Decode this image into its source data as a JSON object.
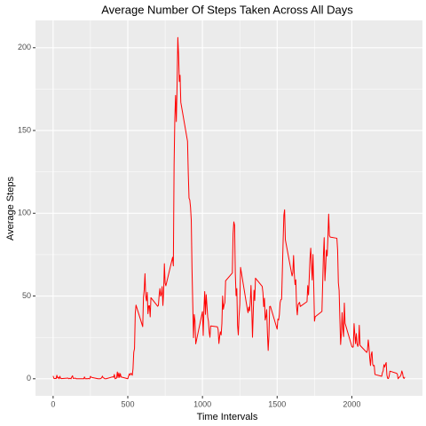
{
  "chart_data": {
    "type": "line",
    "title": "Average Number Of Steps Taken Across All Days",
    "x_label": "Time Intervals",
    "y_label": "Average Steps",
    "color": "#ff0000",
    "grid": true,
    "xlim": [
      -118,
      2473
    ],
    "ylim": [
      -10.3,
      216.5
    ],
    "xticks": [
      0,
      500,
      1000,
      1500,
      2000
    ],
    "yticks": [
      0,
      50,
      100,
      150,
      200
    ],
    "x": [
      0,
      5,
      10,
      15,
      20,
      25,
      30,
      35,
      40,
      45,
      50,
      55,
      100,
      105,
      110,
      115,
      120,
      125,
      130,
      135,
      140,
      145,
      150,
      155,
      200,
      205,
      210,
      215,
      220,
      225,
      230,
      235,
      240,
      245,
      250,
      255,
      300,
      305,
      310,
      315,
      320,
      325,
      330,
      335,
      340,
      345,
      350,
      355,
      400,
      405,
      410,
      415,
      420,
      425,
      430,
      435,
      440,
      445,
      450,
      455,
      500,
      505,
      510,
      515,
      520,
      525,
      530,
      535,
      540,
      545,
      550,
      555,
      600,
      605,
      610,
      615,
      620,
      625,
      630,
      635,
      640,
      645,
      650,
      655,
      700,
      705,
      710,
      715,
      720,
      725,
      730,
      735,
      740,
      745,
      750,
      755,
      800,
      805,
      810,
      815,
      820,
      825,
      830,
      835,
      840,
      845,
      850,
      855,
      900,
      905,
      910,
      915,
      920,
      925,
      930,
      935,
      940,
      945,
      950,
      955,
      1000,
      1005,
      1010,
      1015,
      1020,
      1025,
      1030,
      1035,
      1040,
      1045,
      1050,
      1055,
      1100,
      1105,
      1110,
      1115,
      1120,
      1125,
      1130,
      1135,
      1140,
      1145,
      1150,
      1155,
      1200,
      1205,
      1210,
      1215,
      1220,
      1225,
      1230,
      1235,
      1240,
      1245,
      1250,
      1255,
      1300,
      1305,
      1310,
      1315,
      1320,
      1325,
      1330,
      1335,
      1340,
      1345,
      1350,
      1355,
      1400,
      1405,
      1410,
      1415,
      1420,
      1425,
      1430,
      1435,
      1440,
      1445,
      1450,
      1455,
      1500,
      1505,
      1510,
      1515,
      1520,
      1525,
      1530,
      1535,
      1540,
      1545,
      1550,
      1555,
      1600,
      1605,
      1610,
      1615,
      1620,
      1625,
      1630,
      1635,
      1640,
      1645,
      1650,
      1655,
      1700,
      1705,
      1710,
      1715,
      1720,
      1725,
      1730,
      1735,
      1740,
      1745,
      1750,
      1755,
      1800,
      1805,
      1810,
      1815,
      1820,
      1825,
      1830,
      1835,
      1840,
      1845,
      1850,
      1855,
      1900,
      1905,
      1910,
      1915,
      1920,
      1925,
      1930,
      1935,
      1940,
      1945,
      1950,
      1955,
      2000,
      2005,
      2010,
      2015,
      2020,
      2025,
      2030,
      2035,
      2040,
      2045,
      2050,
      2055,
      2100,
      2105,
      2110,
      2115,
      2120,
      2125,
      2130,
      2135,
      2140,
      2145,
      2150,
      2155,
      2200,
      2205,
      2210,
      2215,
      2220,
      2225,
      2230,
      2235,
      2240,
      2245,
      2250,
      2255,
      2300,
      2305,
      2310,
      2315,
      2320,
      2325,
      2330,
      2335,
      2340,
      2345,
      2350,
      2355
    ],
    "values": [
      1.7,
      0.3,
      0.1,
      0.2,
      0.1,
      2.1,
      0.5,
      0.9,
      0,
      1.5,
      0.3,
      0.1,
      0.4,
      0,
      0.2,
      0.3,
      0,
      1.1,
      1.8,
      0.2,
      0.2,
      0.4,
      0.3,
      0,
      0,
      0,
      1.1,
      0,
      0,
      0.1,
      0,
      0.2,
      0,
      0,
      1.5,
      0.9,
      0,
      0,
      0,
      0,
      0.2,
      0.6,
      1.6,
      0.6,
      0.5,
      0.1,
      0,
      0,
      1.2,
      0.9,
      2.6,
      0,
      0.3,
      0.4,
      4.1,
      0.7,
      3.5,
      0.8,
      3.1,
      1.1,
      0,
      1.6,
      3.0,
      2.2,
      3.3,
      3.0,
      2.1,
      6.1,
      16.0,
      18.3,
      39.5,
      44.5,
      31.5,
      49.3,
      53.8,
      63.5,
      50.0,
      47.1,
      52.2,
      39.3,
      44.0,
      44.2,
      37.4,
      49.0,
      43.8,
      44.4,
      50.5,
      54.5,
      49.9,
      51.0,
      55.7,
      44.3,
      52.3,
      69.5,
      57.8,
      56.2,
      73.4,
      68.2,
      129.4,
      157.5,
      171.2,
      155.4,
      177.3,
      206.2,
      195.9,
      179.6,
      183.4,
      167.0,
      143.5,
      124.0,
      109.1,
      108.1,
      103.7,
      95.9,
      66.2,
      45.2,
      24.8,
      38.8,
      35.0,
      21.1,
      40.6,
      26.1,
      42.4,
      52.7,
      38.9,
      50.8,
      44.3,
      37.4,
      34.7,
      28.3,
      25.1,
      31.9,
      31.4,
      29.7,
      21.3,
      25.5,
      28.4,
      26.5,
      33.4,
      50.0,
      42.0,
      44.6,
      46.0,
      59.2,
      63.9,
      87.7,
      94.8,
      92.8,
      63.4,
      50.2,
      54.5,
      32.4,
      26.5,
      37.7,
      45.1,
      67.3,
      42.3,
      39.9,
      43.3,
      41.0,
      46.2,
      56.4,
      42.8,
      25.1,
      40.0,
      53.5,
      47.3,
      60.8,
      55.8,
      52.0,
      43.6,
      48.7,
      35.5,
      37.5,
      41.8,
      27.5,
      17.1,
      26.1,
      43.6,
      43.8,
      30.0,
      36.1,
      35.5,
      38.8,
      46.0,
      47.8,
      48.1,
      65.3,
      82.9,
      98.7,
      102.1,
      84.0,
      62.1,
      64.1,
      74.5,
      63.2,
      56.9,
      59.8,
      43.9,
      38.6,
      44.7,
      45.5,
      46.2,
      43.7,
      46.6,
      56.3,
      50.7,
      61.2,
      72.7,
      78.9,
      68.9,
      59.7,
      75.1,
      56.5,
      34.8,
      37.5,
      40.7,
      58.0,
      74.7,
      85.3,
      59.3,
      67.8,
      77.7,
      74.2,
      85.3,
      99.5,
      86.6,
      85.6,
      84.9,
      77.8,
      58.0,
      53.4,
      36.3,
      20.7,
      27.4,
      40.0,
      30.2,
      25.5,
      45.7,
      33.5,
      19.6,
      19.0,
      19.3,
      33.3,
      26.8,
      21.2,
      27.3,
      21.3,
      19.5,
      21.3,
      32.3,
      20.2,
      15.9,
      17.2,
      23.5,
      19.2,
      12.5,
      8.0,
      14.7,
      16.3,
      8.7,
      7.8,
      8.1,
      2.6,
      1.5,
      3.7,
      4.8,
      8.5,
      7.1,
      8.7,
      9.8,
      2.2,
      0.3,
      0.1,
      1.6,
      4.6,
      3.3,
      2.8,
      0,
      0.8,
      1.0,
      1.6,
      2.6,
      4.7,
      3.3,
      0.6,
      0.2,
      1.1
    ]
  }
}
